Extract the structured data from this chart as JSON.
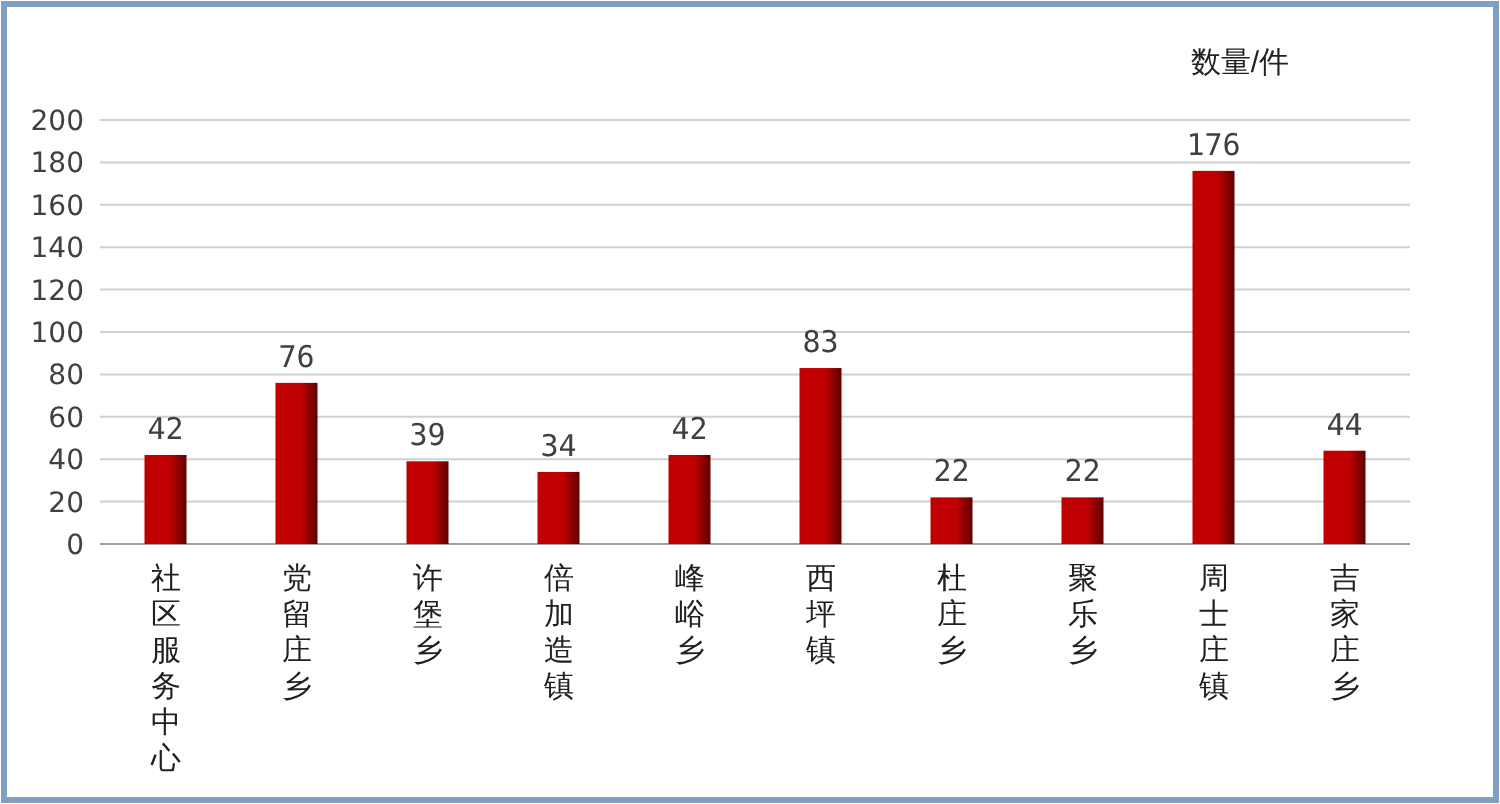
{
  "chart_data": {
    "type": "bar",
    "ylabel": "数量/件",
    "categories": [
      "社区服务中心",
      "党留庄乡",
      "许堡乡",
      "倍加造镇",
      "峰峪乡",
      "西坪镇",
      "杜庄乡",
      "聚乐乡",
      "周士庄镇",
      "吉家庄乡"
    ],
    "values": [
      42,
      76,
      39,
      34,
      42,
      83,
      22,
      22,
      176,
      44
    ],
    "color": "#c00000",
    "ylim": [
      0,
      200
    ],
    "yticks": [
      0,
      20,
      40,
      60,
      80,
      100,
      120,
      140,
      160,
      180,
      200
    ],
    "grid": "y",
    "data_labels": true
  }
}
